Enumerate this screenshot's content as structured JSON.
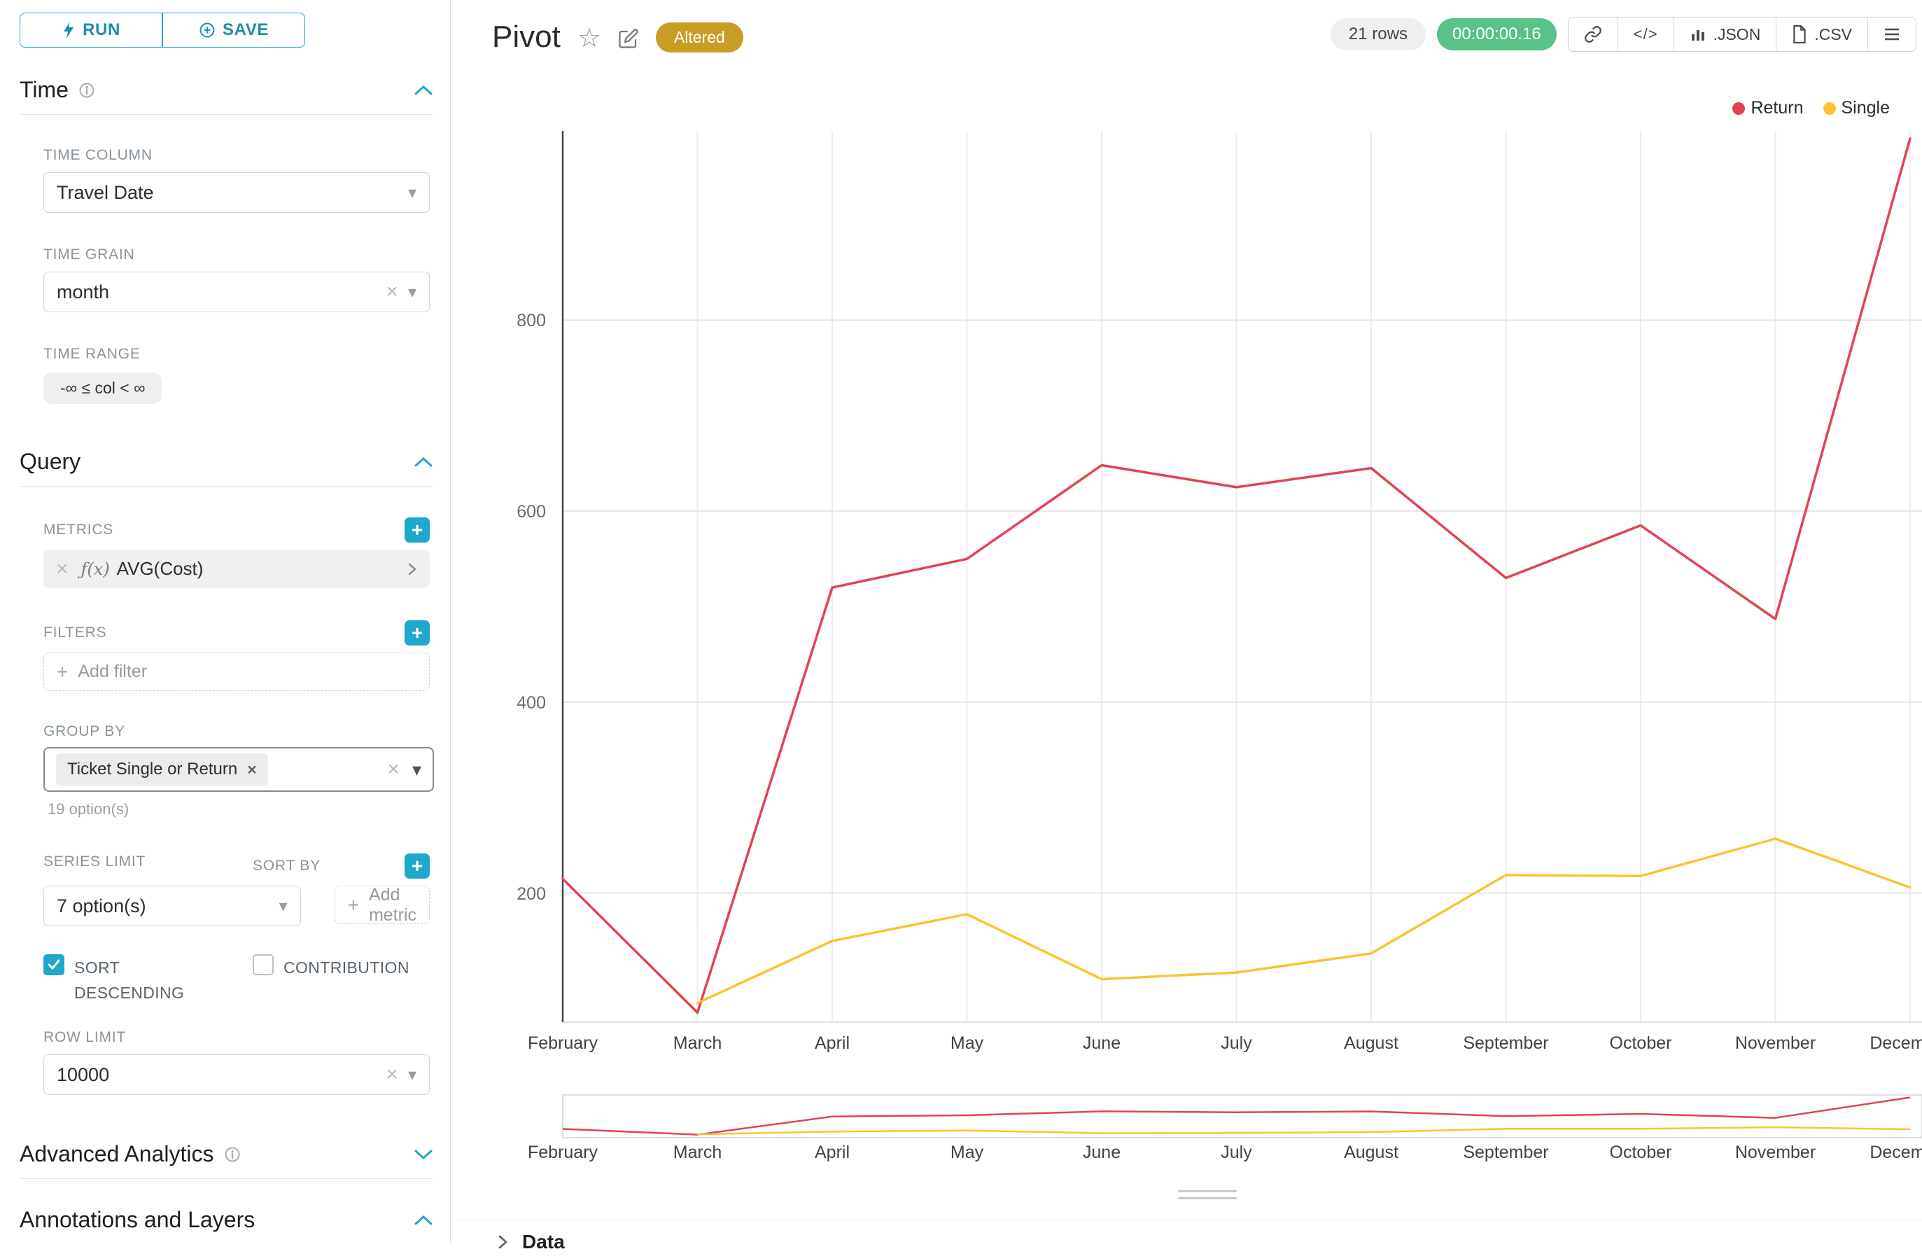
{
  "colors": {
    "primary": "#20a7c9",
    "return_series": "#e04355",
    "single_series": "#fcc330",
    "altered_badge": "#c79d25",
    "timer_badge": "#5ac189"
  },
  "toolbar": {
    "run": "RUN",
    "save": "SAVE"
  },
  "sidebar": {
    "time": {
      "title": "Time",
      "time_column_label": "TIME COLUMN",
      "time_column_value": "Travel Date",
      "time_grain_label": "TIME GRAIN",
      "time_grain_value": "month",
      "time_range_label": "TIME RANGE",
      "time_range_value": "-∞ ≤ col < ∞"
    },
    "query": {
      "title": "Query",
      "metrics_label": "METRICS",
      "metric_fx": "ƒ(x)",
      "metric_value": "AVG(Cost)",
      "filters_label": "FILTERS",
      "add_filter": "Add filter",
      "group_by_label": "GROUP BY",
      "group_by_tag": "Ticket Single or Return",
      "group_by_hint": "19 option(s)",
      "series_limit_label": "SERIES LIMIT",
      "series_limit_value": "7 option(s)",
      "sort_by_label": "SORT BY",
      "add_metric": "Add metric",
      "sort_descending_label": "SORT DESCENDING",
      "sort_descending_checked": true,
      "contribution_label": "CONTRIBUTION",
      "contribution_checked": false,
      "row_limit_label": "ROW LIMIT",
      "row_limit_value": "10000"
    },
    "advanced_title": "Advanced Analytics",
    "annotations_title": "Annotations and Layers"
  },
  "header": {
    "title": "Pivot",
    "altered": "Altered",
    "rows": "21 rows",
    "timer": "00:00:00.16",
    "json_btn": ".JSON",
    "csv_btn": ".CSV"
  },
  "data_panel_title": "Data",
  "chart_data": {
    "type": "line",
    "title": "Pivot",
    "x": [
      "February",
      "March",
      "April",
      "May",
      "June",
      "July",
      "August",
      "September",
      "October",
      "November",
      "December"
    ],
    "series": [
      {
        "name": "Return",
        "color": "#e04355",
        "values": [
          215,
          75,
          520,
          550,
          648,
          625,
          645,
          530,
          585,
          487,
          990
        ]
      },
      {
        "name": "Single",
        "color": "#fcc330",
        "values": [
          null,
          85,
          150,
          178,
          110,
          117,
          137,
          219,
          218,
          257,
          206
        ]
      }
    ],
    "y_ticks": [
      200,
      400,
      600,
      800
    ],
    "ylim": [
      65,
      998
    ],
    "xlabel": "",
    "ylabel": "",
    "grid": true,
    "legend_position": "top-right",
    "has_range_selector": true
  }
}
